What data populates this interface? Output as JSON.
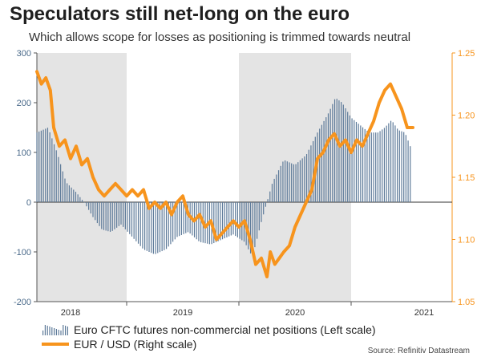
{
  "chart_data": {
    "type": "bar+line",
    "title": "Speculators still net-long on the euro",
    "subtitle": "Which allows scope for losses as positioning is trimmed towards neutral",
    "source": "Source: Refinitiv Datastream",
    "x_labels": [
      "2018",
      "2019",
      "2020",
      "2021"
    ],
    "x_range": [
      2017.7,
      2021.4
    ],
    "shaded_periods": [
      [
        2017.7,
        2018.5
      ],
      [
        2019.5,
        2020.5
      ]
    ],
    "left_axis": {
      "ticks": [
        300,
        200,
        100,
        0,
        -100,
        -200
      ],
      "ylim": [
        -200,
        300
      ],
      "color": "#4a6a8a"
    },
    "right_axis": {
      "ticks": [
        "1.25",
        "1.20",
        "1.15",
        "1.10",
        "1.05"
      ],
      "ylim": [
        1.05,
        1.25
      ],
      "color": "#f7941d"
    },
    "series": [
      {
        "name": "Euro CFTC futures non-commercial net positions (Left scale)",
        "type": "bar",
        "axis": "left",
        "color": "#5d7a99",
        "points": [
          [
            2017.7,
            140
          ],
          [
            2017.8,
            150
          ],
          [
            2017.88,
            100
          ],
          [
            2017.96,
            40
          ],
          [
            2018.05,
            20
          ],
          [
            2018.12,
            0
          ],
          [
            2018.2,
            -30
          ],
          [
            2018.28,
            -55
          ],
          [
            2018.36,
            -60
          ],
          [
            2018.45,
            -45
          ],
          [
            2018.55,
            -70
          ],
          [
            2018.65,
            -95
          ],
          [
            2018.75,
            -105
          ],
          [
            2018.85,
            -95
          ],
          [
            2018.95,
            -70
          ],
          [
            2019.05,
            -60
          ],
          [
            2019.15,
            -80
          ],
          [
            2019.25,
            -85
          ],
          [
            2019.35,
            -75
          ],
          [
            2019.45,
            -65
          ],
          [
            2019.55,
            -80
          ],
          [
            2019.62,
            -110
          ],
          [
            2019.7,
            -40
          ],
          [
            2019.8,
            40
          ],
          [
            2019.9,
            85
          ],
          [
            2020.0,
            75
          ],
          [
            2020.1,
            95
          ],
          [
            2020.2,
            140
          ],
          [
            2020.3,
            180
          ],
          [
            2020.36,
            210
          ],
          [
            2020.42,
            200
          ],
          [
            2020.5,
            170
          ],
          [
            2020.58,
            155
          ],
          [
            2020.66,
            140
          ],
          [
            2020.74,
            140
          ],
          [
            2020.8,
            150
          ],
          [
            2020.86,
            165
          ],
          [
            2020.92,
            145
          ],
          [
            2020.98,
            140
          ],
          [
            2021.04,
            105
          ]
        ]
      },
      {
        "name": "EUR / USD (Right scale)",
        "type": "line",
        "axis": "right",
        "color": "#f7941d",
        "points": [
          [
            2017.7,
            1.235
          ],
          [
            2017.74,
            1.225
          ],
          [
            2017.78,
            1.23
          ],
          [
            2017.82,
            1.22
          ],
          [
            2017.85,
            1.19
          ],
          [
            2017.9,
            1.175
          ],
          [
            2017.95,
            1.18
          ],
          [
            2018.0,
            1.165
          ],
          [
            2018.05,
            1.175
          ],
          [
            2018.1,
            1.16
          ],
          [
            2018.15,
            1.165
          ],
          [
            2018.2,
            1.15
          ],
          [
            2018.25,
            1.14
          ],
          [
            2018.3,
            1.135
          ],
          [
            2018.35,
            1.14
          ],
          [
            2018.4,
            1.145
          ],
          [
            2018.45,
            1.14
          ],
          [
            2018.5,
            1.135
          ],
          [
            2018.55,
            1.14
          ],
          [
            2018.6,
            1.135
          ],
          [
            2018.65,
            1.14
          ],
          [
            2018.7,
            1.125
          ],
          [
            2018.75,
            1.13
          ],
          [
            2018.8,
            1.125
          ],
          [
            2018.85,
            1.13
          ],
          [
            2018.9,
            1.12
          ],
          [
            2018.95,
            1.13
          ],
          [
            2019.0,
            1.135
          ],
          [
            2019.05,
            1.12
          ],
          [
            2019.1,
            1.115
          ],
          [
            2019.15,
            1.12
          ],
          [
            2019.2,
            1.11
          ],
          [
            2019.25,
            1.115
          ],
          [
            2019.3,
            1.1
          ],
          [
            2019.35,
            1.105
          ],
          [
            2019.4,
            1.11
          ],
          [
            2019.45,
            1.115
          ],
          [
            2019.5,
            1.11
          ],
          [
            2019.55,
            1.115
          ],
          [
            2019.6,
            1.1
          ],
          [
            2019.65,
            1.08
          ],
          [
            2019.7,
            1.085
          ],
          [
            2019.75,
            1.07
          ],
          [
            2019.78,
            1.09
          ],
          [
            2019.82,
            1.08
          ],
          [
            2019.86,
            1.085
          ],
          [
            2019.9,
            1.09
          ],
          [
            2019.95,
            1.095
          ],
          [
            2020.0,
            1.11
          ],
          [
            2020.05,
            1.12
          ],
          [
            2020.1,
            1.13
          ],
          [
            2020.15,
            1.14
          ],
          [
            2020.2,
            1.165
          ],
          [
            2020.25,
            1.17
          ],
          [
            2020.3,
            1.18
          ],
          [
            2020.35,
            1.185
          ],
          [
            2020.4,
            1.175
          ],
          [
            2020.45,
            1.18
          ],
          [
            2020.5,
            1.17
          ],
          [
            2020.55,
            1.18
          ],
          [
            2020.6,
            1.175
          ],
          [
            2020.65,
            1.185
          ],
          [
            2020.7,
            1.195
          ],
          [
            2020.75,
            1.21
          ],
          [
            2020.8,
            1.22
          ],
          [
            2020.85,
            1.225
          ],
          [
            2020.9,
            1.215
          ],
          [
            2020.95,
            1.205
          ],
          [
            2021.0,
            1.19
          ],
          [
            2021.05,
            1.19
          ]
        ]
      }
    ]
  }
}
